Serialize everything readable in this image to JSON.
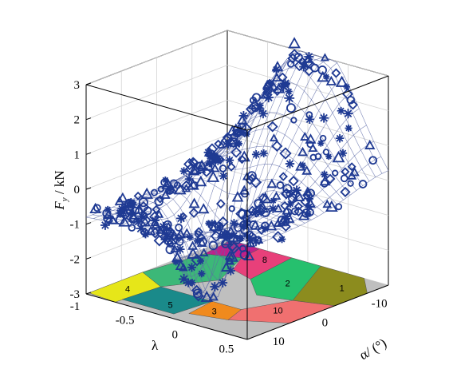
{
  "chart_data": {
    "type": "surface3d",
    "title": "",
    "zlabel": "F_y / kN",
    "zlabel_main": "F",
    "zlabel_sub": "y",
    "zlabel_unit": " / kN",
    "xlabel": "λ",
    "ylabel": "α/ (°)",
    "zlim": [
      -3,
      3
    ],
    "xlim": [
      -1,
      0.6
    ],
    "ylim": [
      -15,
      15
    ],
    "z_ticks": [
      "3",
      "2",
      "1",
      "0",
      "-1",
      "-2",
      "-3"
    ],
    "lambda_ticks": [
      "-1",
      "-0.5",
      "0",
      "0.5"
    ],
    "alpha_ticks": [
      "-10",
      "0",
      "10"
    ],
    "grid": true,
    "surface_color": "#5d6aa8",
    "marker_color": "#1f3a93",
    "floor_regions": [
      {
        "label": "1",
        "color": "#8c8c1e"
      },
      {
        "label": "2",
        "color": "#26c06e"
      },
      {
        "label": "3",
        "color": "#f08a1e"
      },
      {
        "label": "4",
        "color": "#e6e619"
      },
      {
        "label": "5",
        "color": "#1a8a8a"
      },
      {
        "label": "8",
        "color": "#e8407a"
      },
      {
        "label": "10",
        "color": "#f07070"
      },
      {
        "label": "",
        "color": "#3cb878"
      },
      {
        "label": "",
        "color": "#c0208a"
      }
    ]
  }
}
